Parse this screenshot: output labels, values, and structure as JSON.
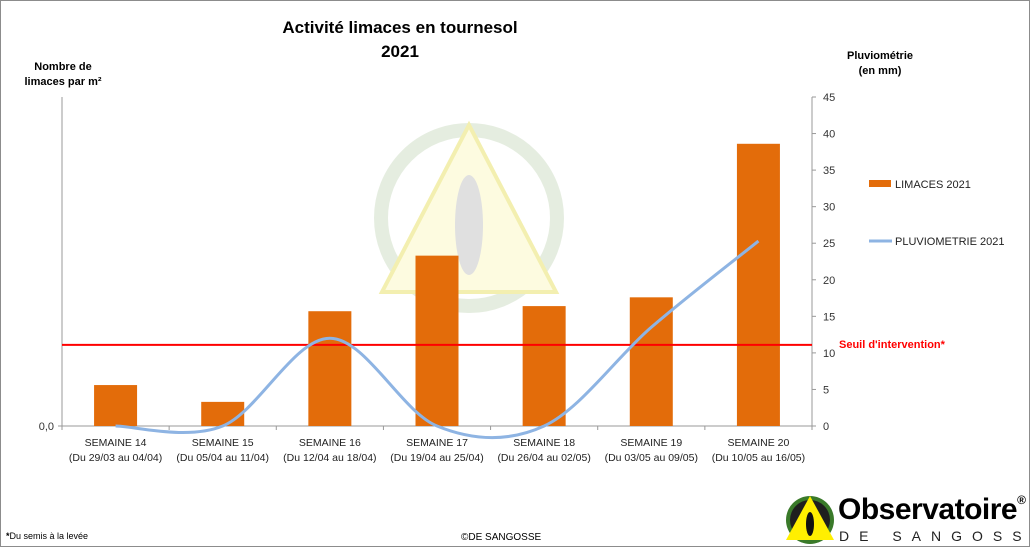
{
  "chart_data": {
    "type": "bar+line",
    "title": "Activité limaces en tournesol",
    "subtitle": "2021",
    "ylabel_left": "Nombre de limaces par m²",
    "ylabel_right": "Pluviométrie (en mm)",
    "ylabel_left_lines": [
      "Nombre de",
      "limaces par m²"
    ],
    "ylabel_right_lines": [
      "Pluviométrie",
      "(en mm)"
    ],
    "left_tick_labels": [
      "0,0"
    ],
    "right_ylim": [
      0,
      45
    ],
    "right_ticks": [
      0,
      5,
      10,
      15,
      20,
      25,
      30,
      35,
      40,
      45
    ],
    "categories": [
      "SEMAINE 14",
      "SEMAINE 15",
      "SEMAINE 16",
      "SEMAINE 17",
      "SEMAINE 18",
      "SEMAINE 19",
      "SEMAINE 20"
    ],
    "category_dates": [
      "(Du 29/03 au 04/04)",
      "(Du 05/04 au 11/04)",
      "(Du 12/04 au 18/04)",
      "(Du 19/04 au 25/04)",
      "(Du 26/04 au 02/05)",
      "(Du 03/05 au 09/05)",
      "(Du 10/05 au 16/05)"
    ],
    "series": [
      {
        "name": "LIMACES 2021",
        "type": "bar",
        "axis": "left",
        "color": "#E36C0A",
        "values": [
          5.6,
          3.3,
          15.7,
          23.3,
          16.4,
          17.6,
          38.6
        ]
      },
      {
        "name": "PLUVIOMETRIE 2021",
        "type": "line",
        "axis": "right",
        "color": "#8EB4E3",
        "values": [
          0,
          0,
          12,
          0,
          0,
          13.5,
          25.3
        ]
      }
    ],
    "threshold": {
      "label": "Seuil d'intervention*",
      "value": 11.1,
      "color": "#FF0000"
    },
    "legend_position": "right"
  },
  "footnote": "Du semis à la levée",
  "footnote_mark": "*",
  "copyright": "©DE SANGOSSE",
  "logo": {
    "name": "Observatoire",
    "reg": "®",
    "sub": "DE SANGOSSE"
  }
}
